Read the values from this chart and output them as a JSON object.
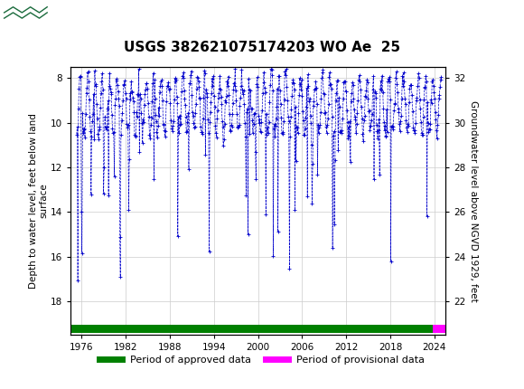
{
  "title": "USGS 382621075174203 WO Ae  25",
  "header_color": "#1a6b3c",
  "ylabel_left": "Depth to water level, feet below land\nsurface",
  "ylabel_right": "Groundwater level above NGVD 1929, feet",
  "xlim": [
    1974.5,
    2025.5
  ],
  "ylim_left": [
    19.5,
    7.5
  ],
  "ylim_right": [
    21.5,
    32.5
  ],
  "xticks": [
    1976,
    1982,
    1988,
    1994,
    2000,
    2006,
    2012,
    2018,
    2024
  ],
  "yticks_left": [
    8,
    10,
    12,
    14,
    16,
    18
  ],
  "yticks_right": [
    22,
    24,
    26,
    28,
    30,
    32
  ],
  "line_color": "#0000CC",
  "marker": "+",
  "linestyle": "--",
  "bar_approved_color": "#008000",
  "bar_provisional_color": "#FF00FF",
  "approved_xstart": 1974.5,
  "approved_xend": 2023.8,
  "provisional_xstart": 2023.8,
  "provisional_xend": 2025.5,
  "grid_color": "#cccccc",
  "background_color": "#ffffff",
  "fig_width": 5.8,
  "fig_height": 4.3,
  "dpi": 100
}
